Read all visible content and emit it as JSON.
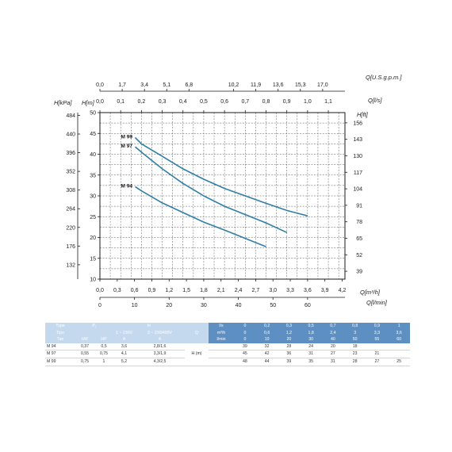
{
  "chart_data": {
    "type": "line",
    "axis_titles": {
      "left_kpa": "H[kPa]",
      "left_m": "H[m]",
      "right_ft": "H[ft]",
      "top_usgpm": "Q[U.S.g.p.m.]",
      "top_ls": "Q[l/s]",
      "bottom_m3h": "Q[m³/h]",
      "bottom_lmin": "Q[l/min]"
    },
    "x_unit": "l/s",
    "x_range": [
      0,
      1.18
    ],
    "y_unit": "m",
    "y_range": [
      10,
      50
    ],
    "grid": true,
    "ticks": {
      "h_m": [
        "10",
        "15",
        "20",
        "25",
        "30",
        "35",
        "40",
        "45",
        "50"
      ],
      "h_kpa": [
        "132",
        "176",
        "220",
        "264",
        "308",
        "352",
        "396",
        "440",
        "484"
      ],
      "h_ft": [
        "39",
        "52",
        "65",
        "78",
        "91",
        "104",
        "117",
        "130",
        "143",
        "156"
      ],
      "q_ls": [
        "0,0",
        "0,1",
        "0,2",
        "0,3",
        "0,4",
        "0,5",
        "0,6",
        "0,7",
        "0,8",
        "0,9",
        "1,0",
        "1,1"
      ],
      "q_usgpm": [
        "0,0",
        "1,7",
        "3,4",
        "5,1",
        "6,8",
        "10,2",
        "11,9",
        "13,6",
        "15,3",
        "17,0"
      ],
      "q_m3h": [
        "0,0",
        "0,3",
        "0,6",
        "0,9",
        "1,2",
        "1,5",
        "1,8",
        "2,1",
        "2,4",
        "2,7",
        "3,0",
        "3,3",
        "3,6",
        "3,9",
        "4,2"
      ],
      "q_lmin": [
        "0",
        "10",
        "20",
        "30",
        "40",
        "50",
        "60"
      ]
    },
    "series": [
      {
        "name": "M 99",
        "x": [
          0.17,
          0.2,
          0.3,
          0.4,
          0.5,
          0.6,
          0.7,
          0.8,
          0.9,
          1.0
        ],
        "y": [
          44,
          42.5,
          39.5,
          36.5,
          34,
          31.8,
          30,
          28.2,
          26.5,
          25.2
        ]
      },
      {
        "name": "M 97",
        "x": [
          0.17,
          0.2,
          0.3,
          0.4,
          0.5,
          0.6,
          0.7,
          0.8,
          0.9
        ],
        "y": [
          41.8,
          40.5,
          36.5,
          33,
          30,
          27.5,
          25.5,
          23.5,
          21.2
        ]
      },
      {
        "name": "M 94",
        "x": [
          0.17,
          0.2,
          0.3,
          0.4,
          0.5,
          0.6,
          0.7,
          0.8
        ],
        "y": [
          32.2,
          31.2,
          28.3,
          26,
          23.7,
          21.8,
          19.8,
          17.8
        ]
      }
    ],
    "line_color": "#2f7fa6"
  },
  "table": {
    "header_row1": {
      "type": "Type",
      "p1": "P₁",
      "in": "In",
      "q_ls": "l/s",
      "values": [
        "0",
        "0,2",
        "0,3",
        "0,5",
        "0,7",
        "0,8",
        "0,9",
        "1"
      ]
    },
    "header_row2": {
      "tipo": "Tipo",
      "v1": "1 ~ 230V",
      "v3": "3 ~ 230/400V",
      "q": "Q",
      "q_m3h": "m³/h",
      "values": [
        "0",
        "0,6",
        "1,2",
        "1,8",
        "2,4",
        "3",
        "3,3",
        "3,6"
      ]
    },
    "header_row3": {
      "typ": "Тип",
      "kw": "kW",
      "hp": "HP",
      "a1": "A",
      "a3": "A",
      "q_lmin": "l/min",
      "values": [
        "0",
        "10",
        "20",
        "30",
        "40",
        "50",
        "55",
        "60"
      ]
    },
    "h_label": "H (m)",
    "rows": [
      {
        "type": "M 94",
        "kw": "0,37",
        "hp": "0,5",
        "a1": "3,6",
        "a3": "2,8/1,6",
        "h": [
          "39",
          "32",
          "28",
          "24",
          "20",
          "18",
          "",
          ""
        ]
      },
      {
        "type": "M 97",
        "kw": "0,55",
        "hp": "0,75",
        "a1": "4,1",
        "a3": "3,3/1,9",
        "h": [
          "45",
          "42",
          "36",
          "31",
          "27",
          "23",
          "21",
          ""
        ]
      },
      {
        "type": "M 99",
        "kw": "0,75",
        "hp": "1",
        "a1": "5,2",
        "a3": "4,3/2,5",
        "h": [
          "48",
          "44",
          "39",
          "35",
          "31",
          "28",
          "27",
          "25"
        ]
      }
    ]
  }
}
